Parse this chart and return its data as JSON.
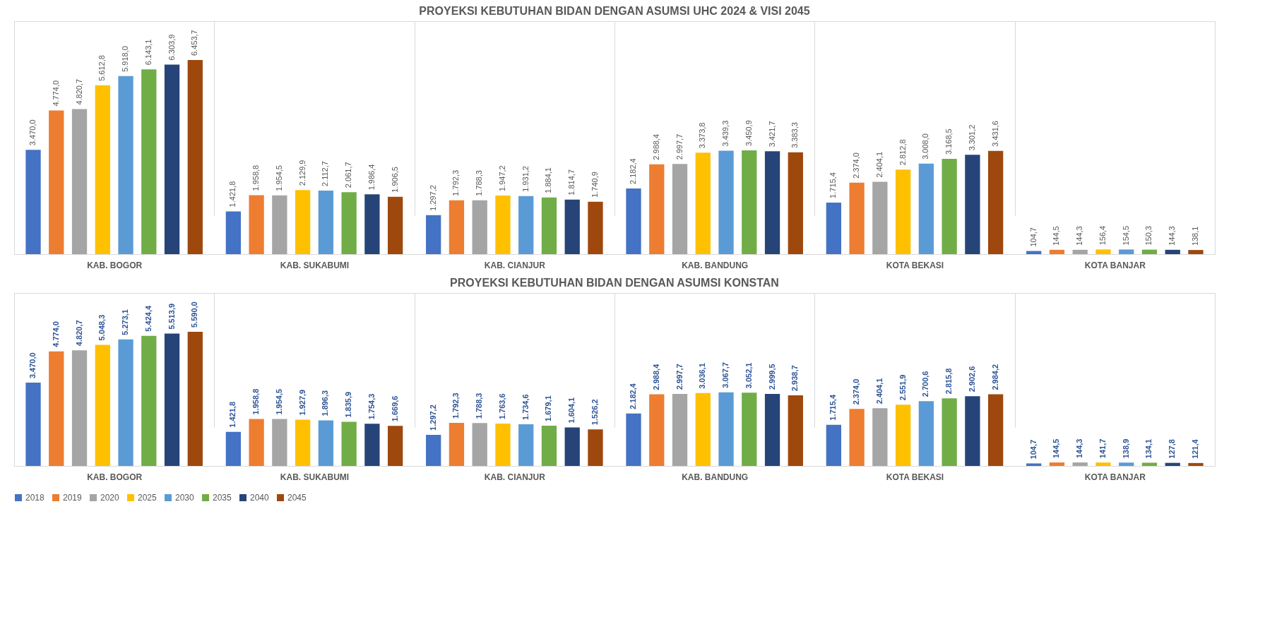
{
  "chart_data": [
    {
      "type": "bar",
      "title": "PROYEKSI KEBUTUHAN BIDAN DENGAN ASUMSI UHC 2024 & VISI 2045",
      "categories": [
        "KAB. BOGOR",
        "KAB. SUKABUMI",
        "KAB. CIANJUR",
        "KAB. BANDUNG",
        "KOTA BEKASI",
        "KOTA BANJAR"
      ],
      "grid": "x",
      "legend": false,
      "series": [
        {
          "color": "#4472c4",
          "values": [
            3470.0,
            1421.8,
            1297.2,
            2182.4,
            1715.4,
            104.7
          ],
          "value_labels": [
            "3.470,0",
            "1.421,8",
            "1.297,2",
            "2.182,4",
            "1.715,4",
            "104,7"
          ]
        },
        {
          "color": "#ed7d31",
          "values": [
            4774.0,
            1958.8,
            1792.3,
            2988.4,
            2374.0,
            144.5
          ],
          "value_labels": [
            "4.774,0",
            "1.958,8",
            "1.792,3",
            "2.988,4",
            "2.374,0",
            "144,5"
          ]
        },
        {
          "color": "#a5a5a5",
          "values": [
            4820.7,
            1954.5,
            1788.3,
            2997.7,
            2404.1,
            144.3
          ],
          "value_labels": [
            "4.820,7",
            "1.954,5",
            "1.788,3",
            "2.997,7",
            "2.404,1",
            "144,3"
          ]
        },
        {
          "color": "#ffc000",
          "values": [
            5612.8,
            2129.9,
            1947.2,
            3373.8,
            2812.8,
            156.4
          ],
          "value_labels": [
            "5.612,8",
            "2.129,9",
            "1.947,2",
            "3.373,8",
            "2.812,8",
            "156,4"
          ]
        },
        {
          "color": "#5b9bd5",
          "values": [
            5918.0,
            2112.7,
            1931.2,
            3439.3,
            3008.0,
            154.5
          ],
          "value_labels": [
            "5.918,0",
            "2.112,7",
            "1.931,2",
            "3.439,3",
            "3.008,0",
            "154,5"
          ]
        },
        {
          "color": "#70ad47",
          "values": [
            6143.1,
            2061.7,
            1884.1,
            3450.9,
            3168.5,
            150.3
          ],
          "value_labels": [
            "6.143,1",
            "2.061,7",
            "1.884,1",
            "3.450,9",
            "3.168,5",
            "150,3"
          ]
        },
        {
          "color": "#264478",
          "values": [
            6303.9,
            1986.4,
            1814.7,
            3421.7,
            3301.2,
            144.3
          ],
          "value_labels": [
            "6.303,9",
            "1.986,4",
            "1.814,7",
            "3.421,7",
            "3.301,2",
            "144,3"
          ]
        },
        {
          "color": "#9e480e",
          "values": [
            6453.7,
            1906.5,
            1740.9,
            3383.3,
            3431.6,
            138.1
          ],
          "value_labels": [
            "6.453,7",
            "1.906,5",
            "1.740,9",
            "3.383,3",
            "3.431,6",
            "138,1"
          ]
        }
      ]
    },
    {
      "type": "bar",
      "title": "PROYEKSI KEBUTUHAN BIDAN DENGAN ASUMSI KONSTAN",
      "categories": [
        "KAB. BOGOR",
        "KAB. SUKABUMI",
        "KAB. CIANJUR",
        "KAB. BANDUNG",
        "KOTA BEKASI",
        "KOTA BANJAR"
      ],
      "grid": "x",
      "legend": "bottom",
      "series": [
        {
          "name": "2018",
          "color": "#4472c4",
          "values": [
            3470.0,
            1421.8,
            1297.2,
            2182.4,
            1715.4,
            104.7
          ],
          "value_labels": [
            "3.470,0",
            "1.421,8",
            "1.297,2",
            "2.182,4",
            "1.715,4",
            "104,7"
          ]
        },
        {
          "name": "2019",
          "color": "#ed7d31",
          "values": [
            4774.0,
            1958.8,
            1792.3,
            2988.4,
            2374.0,
            144.5
          ],
          "value_labels": [
            "4.774,0",
            "1.958,8",
            "1.792,3",
            "2.988,4",
            "2.374,0",
            "144,5"
          ]
        },
        {
          "name": "2020",
          "color": "#a5a5a5",
          "values": [
            4820.7,
            1954.5,
            1788.3,
            2997.7,
            2404.1,
            144.3
          ],
          "value_labels": [
            "4.820,7",
            "1.954,5",
            "1.788,3",
            "2.997,7",
            "2.404,1",
            "144,3"
          ]
        },
        {
          "name": "2025",
          "color": "#ffc000",
          "values": [
            5048.3,
            1927.9,
            1763.6,
            3036.1,
            2551.9,
            141.7
          ],
          "value_labels": [
            "5.048,3",
            "1.927,9",
            "1.763,6",
            "3.036,1",
            "2.551,9",
            "141,7"
          ]
        },
        {
          "name": "2030",
          "color": "#5b9bd5",
          "values": [
            5273.1,
            1896.3,
            1734.6,
            3067.7,
            2700.6,
            138.9
          ],
          "value_labels": [
            "5.273,1",
            "1.896,3",
            "1.734,6",
            "3.067,7",
            "2.700,6",
            "138,9"
          ]
        },
        {
          "name": "2035",
          "color": "#70ad47",
          "values": [
            5424.4,
            1835.9,
            1679.1,
            3052.1,
            2815.8,
            134.1
          ],
          "value_labels": [
            "5.424,4",
            "1.835,9",
            "1.679,1",
            "3.052,1",
            "2.815,8",
            "134,1"
          ]
        },
        {
          "name": "2040",
          "color": "#264478",
          "values": [
            5513.9,
            1754.3,
            1604.1,
            2999.5,
            2902.6,
            127.8
          ],
          "value_labels": [
            "5.513,9",
            "1.754,3",
            "1.604,1",
            "2.999,5",
            "2.902,6",
            "127,8"
          ]
        },
        {
          "name": "2045",
          "color": "#9e480e",
          "values": [
            5590.0,
            1669.6,
            1526.2,
            2938.7,
            2984.2,
            121.4
          ],
          "value_labels": [
            "5.590,0",
            "1.669,6",
            "1.526,2",
            "2.938,7",
            "2.984,2",
            "121,4"
          ]
        }
      ]
    }
  ]
}
